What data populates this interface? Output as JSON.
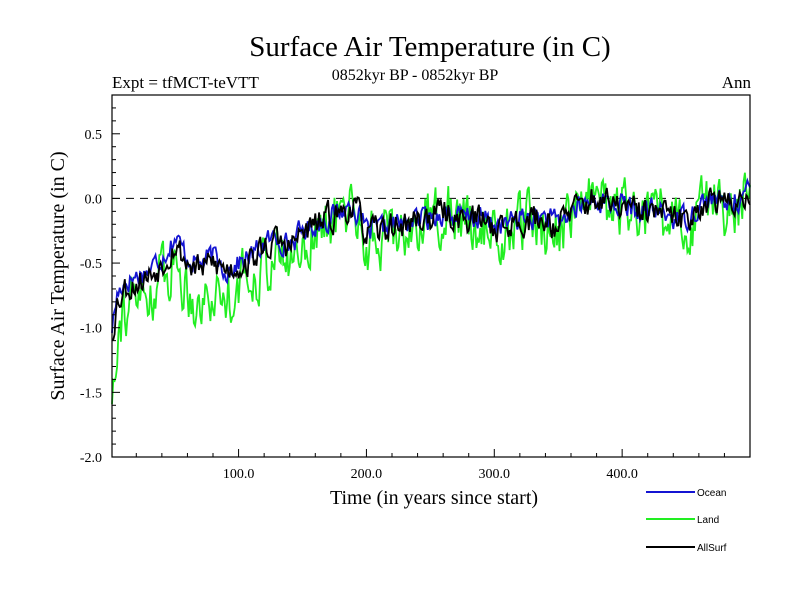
{
  "chart_data": {
    "type": "line",
    "title": "Surface Air Temperature (in C)",
    "experiment": "Expt = tfMCT-teVTT",
    "period": "0852kyr BP - 0852kyr BP",
    "season": "Ann",
    "xlabel": "Time (in years since start)",
    "ylabel": "Surface Air Temperature (in C)",
    "xlim": [
      1,
      500
    ],
    "ylim": [
      -2.0,
      0.8
    ],
    "xticks": [
      100,
      200,
      300,
      400
    ],
    "xtick_labels": [
      "100.0",
      "200.0",
      "300.0",
      "400.0"
    ],
    "yticks": [
      -2.0,
      -1.5,
      -1.0,
      -0.5,
      0.0,
      0.5
    ],
    "ytick_labels": [
      "-2.0",
      "-1.5",
      "-1.0",
      "-0.5",
      "0.0",
      "0.5"
    ],
    "reference_line": 0.0,
    "legend_position": "bottom-right",
    "series": [
      {
        "name": "Ocean",
        "color": "#1414d2",
        "trend": [
          [
            1,
            -1.0
          ],
          [
            5,
            -0.75
          ],
          [
            10,
            -0.65
          ],
          [
            20,
            -0.6
          ],
          [
            30,
            -0.55
          ],
          [
            40,
            -0.45
          ],
          [
            50,
            -0.3
          ],
          [
            60,
            -0.45
          ],
          [
            70,
            -0.5
          ],
          [
            80,
            -0.45
          ],
          [
            90,
            -0.55
          ],
          [
            100,
            -0.5
          ],
          [
            110,
            -0.45
          ],
          [
            120,
            -0.35
          ],
          [
            130,
            -0.3
          ],
          [
            140,
            -0.35
          ],
          [
            150,
            -0.25
          ],
          [
            160,
            -0.2
          ],
          [
            170,
            -0.15
          ],
          [
            180,
            -0.1
          ],
          [
            190,
            -0.05
          ],
          [
            200,
            -0.25
          ],
          [
            210,
            -0.25
          ],
          [
            220,
            -0.2
          ],
          [
            230,
            -0.2
          ],
          [
            240,
            -0.15
          ],
          [
            250,
            -0.15
          ],
          [
            260,
            -0.1
          ],
          [
            270,
            -0.15
          ],
          [
            280,
            -0.15
          ],
          [
            290,
            -0.15
          ],
          [
            300,
            -0.2
          ],
          [
            310,
            -0.2
          ],
          [
            320,
            -0.15
          ],
          [
            330,
            -0.15
          ],
          [
            340,
            -0.15
          ],
          [
            350,
            -0.2
          ],
          [
            360,
            -0.1
          ],
          [
            370,
            -0.05
          ],
          [
            380,
            0.0
          ],
          [
            390,
            -0.05
          ],
          [
            400,
            -0.05
          ],
          [
            410,
            -0.1
          ],
          [
            420,
            -0.1
          ],
          [
            430,
            -0.1
          ],
          [
            440,
            -0.15
          ],
          [
            450,
            -0.15
          ],
          [
            460,
            -0.05
          ],
          [
            470,
            0.0
          ],
          [
            480,
            -0.05
          ],
          [
            490,
            0.0
          ],
          [
            500,
            0.05
          ]
        ],
        "noise": 0.08,
        "seed": 17
      },
      {
        "name": "Land",
        "color": "#22ee22",
        "trend": [
          [
            1,
            -1.5
          ],
          [
            5,
            -1.0
          ],
          [
            10,
            -0.85
          ],
          [
            20,
            -0.8
          ],
          [
            30,
            -0.75
          ],
          [
            40,
            -0.6
          ],
          [
            50,
            -0.5
          ],
          [
            60,
            -0.7
          ],
          [
            70,
            -0.8
          ],
          [
            80,
            -0.75
          ],
          [
            90,
            -0.75
          ],
          [
            100,
            -0.65
          ],
          [
            110,
            -0.6
          ],
          [
            120,
            -0.5
          ],
          [
            130,
            -0.45
          ],
          [
            140,
            -0.5
          ],
          [
            150,
            -0.35
          ],
          [
            160,
            -0.25
          ],
          [
            170,
            -0.2
          ],
          [
            180,
            -0.15
          ],
          [
            190,
            -0.05
          ],
          [
            200,
            -0.35
          ],
          [
            210,
            -0.3
          ],
          [
            220,
            -0.25
          ],
          [
            230,
            -0.25
          ],
          [
            240,
            -0.2
          ],
          [
            250,
            -0.15
          ],
          [
            260,
            -0.1
          ],
          [
            270,
            -0.15
          ],
          [
            280,
            -0.2
          ],
          [
            290,
            -0.2
          ],
          [
            300,
            -0.3
          ],
          [
            310,
            -0.3
          ],
          [
            320,
            -0.2
          ],
          [
            330,
            -0.2
          ],
          [
            340,
            -0.2
          ],
          [
            350,
            -0.25
          ],
          [
            360,
            -0.1
          ],
          [
            370,
            -0.05
          ],
          [
            380,
            0.0
          ],
          [
            390,
            -0.1
          ],
          [
            400,
            -0.1
          ],
          [
            410,
            -0.15
          ],
          [
            420,
            -0.15
          ],
          [
            430,
            -0.15
          ],
          [
            440,
            -0.2
          ],
          [
            450,
            -0.25
          ],
          [
            460,
            -0.05
          ],
          [
            470,
            0.0
          ],
          [
            480,
            -0.1
          ],
          [
            490,
            -0.05
          ],
          [
            500,
            0.05
          ]
        ],
        "noise": 0.2,
        "seed": 91
      },
      {
        "name": "AllSurf",
        "color": "#000000",
        "trend": [
          [
            1,
            -1.05
          ],
          [
            5,
            -0.8
          ],
          [
            10,
            -0.7
          ],
          [
            20,
            -0.65
          ],
          [
            30,
            -0.6
          ],
          [
            40,
            -0.5
          ],
          [
            50,
            -0.35
          ],
          [
            60,
            -0.5
          ],
          [
            70,
            -0.55
          ],
          [
            80,
            -0.5
          ],
          [
            90,
            -0.55
          ],
          [
            100,
            -0.52
          ],
          [
            110,
            -0.48
          ],
          [
            120,
            -0.38
          ],
          [
            130,
            -0.33
          ],
          [
            140,
            -0.38
          ],
          [
            150,
            -0.27
          ],
          [
            160,
            -0.21
          ],
          [
            170,
            -0.16
          ],
          [
            180,
            -0.11
          ],
          [
            190,
            -0.05
          ],
          [
            200,
            -0.27
          ],
          [
            210,
            -0.26
          ],
          [
            220,
            -0.21
          ],
          [
            230,
            -0.21
          ],
          [
            240,
            -0.16
          ],
          [
            250,
            -0.15
          ],
          [
            260,
            -0.1
          ],
          [
            270,
            -0.15
          ],
          [
            280,
            -0.16
          ],
          [
            290,
            -0.16
          ],
          [
            300,
            -0.22
          ],
          [
            310,
            -0.22
          ],
          [
            320,
            -0.16
          ],
          [
            330,
            -0.16
          ],
          [
            340,
            -0.16
          ],
          [
            350,
            -0.21
          ],
          [
            360,
            -0.1
          ],
          [
            370,
            -0.05
          ],
          [
            380,
            0.0
          ],
          [
            390,
            -0.06
          ],
          [
            400,
            -0.06
          ],
          [
            410,
            -0.11
          ],
          [
            420,
            -0.11
          ],
          [
            430,
            -0.11
          ],
          [
            440,
            -0.16
          ],
          [
            450,
            -0.17
          ],
          [
            460,
            -0.05
          ],
          [
            470,
            0.0
          ],
          [
            480,
            -0.06
          ],
          [
            490,
            -0.01
          ],
          [
            500,
            0.05
          ]
        ],
        "noise": 0.1,
        "seed": 53
      }
    ]
  }
}
